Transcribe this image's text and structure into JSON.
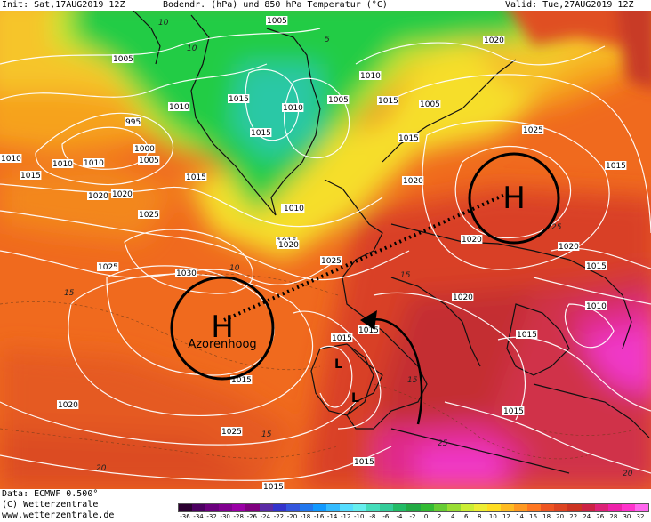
{
  "header": {
    "init": "Init: Sat,17AUG2019 12Z",
    "title": "Bodendr. (hPa) und 850 hPa Temperatur (°C)",
    "valid": "Valid: Tue,27AUG2019 12Z"
  },
  "footer": {
    "data_source": "Data: ECMWF  0.500°",
    "copyright": "(C) Wetterzentrale",
    "website": "www.wetterzentrale.de"
  },
  "annotations": {
    "high_symbol": "H",
    "low_symbol": "L",
    "azores_label": "Azorenhoog"
  },
  "colorbar": {
    "ticks": [
      "-36",
      "-34",
      "-32",
      "-30",
      "-28",
      "-26",
      "-24",
      "-22",
      "-20",
      "-18",
      "-16",
      "-14",
      "-12",
      "-10",
      "-8",
      "-6",
      "-4",
      "-2",
      "0",
      "2",
      "4",
      "6",
      "8",
      "10",
      "12",
      "14",
      "16",
      "18",
      "20",
      "22",
      "24",
      "26",
      "28",
      "30",
      "32"
    ],
    "colors": [
      "#2a0030",
      "#4b0060",
      "#6a007d",
      "#80008f",
      "#9a00a6",
      "#7f007f",
      "#5a2aa5",
      "#3333cc",
      "#3355dd",
      "#2277ee",
      "#1199ff",
      "#33bbff",
      "#55ddff",
      "#66eeee",
      "#44ddbb",
      "#33cc99",
      "#22bb66",
      "#22aa44",
      "#33bb33",
      "#66cc33",
      "#99dd33",
      "#ccee33",
      "#eeee33",
      "#ffdd22",
      "#ffbb22",
      "#ff9922",
      "#ff7722",
      "#ee5522",
      "#dd4422",
      "#cc3322",
      "#cc2244",
      "#dd2277",
      "#ee22aa",
      "#ff33cc",
      "#ff66ee"
    ]
  },
  "map_colors": {
    "warm_orange": "#f06a1e",
    "orange": "#f6a21c",
    "yellow": "#f6de2c",
    "lime": "#c8ea32",
    "green": "#22cc44",
    "teal": "#2cc8a6",
    "red": "#d93f26",
    "dark_red": "#c42d30",
    "magenta": "#e02a8a",
    "pink": "#f038c8"
  },
  "isobar_labels": [
    {
      "text": "1005"
    },
    {
      "text": "1005"
    },
    {
      "text": "1010"
    },
    {
      "text": "1015"
    },
    {
      "text": "1010"
    },
    {
      "text": "1015"
    },
    {
      "text": "1010"
    },
    {
      "text": "1005"
    },
    {
      "text": "1020"
    },
    {
      "text": "1005"
    },
    {
      "text": "1010"
    },
    {
      "text": "1015"
    },
    {
      "text": "1025"
    },
    {
      "text": "1010"
    },
    {
      "text": "1015"
    },
    {
      "text": "1020"
    },
    {
      "text": "1020"
    },
    {
      "text": "1015"
    },
    {
      "text": "1010"
    },
    {
      "text": "1015"
    },
    {
      "text": "1020"
    },
    {
      "text": "1025"
    },
    {
      "text": "995"
    },
    {
      "text": "1000"
    },
    {
      "text": "1005"
    },
    {
      "text": "1010"
    },
    {
      "text": "1015"
    },
    {
      "text": "1020"
    },
    {
      "text": "1025"
    },
    {
      "text": "1025"
    },
    {
      "text": "1030"
    },
    {
      "text": "1020"
    },
    {
      "text": "1025"
    },
    {
      "text": "1010"
    },
    {
      "text": "1020"
    },
    {
      "text": "1015"
    },
    {
      "text": "1010"
    },
    {
      "text": "1015"
    },
    {
      "text": "1015"
    },
    {
      "text": "1015"
    },
    {
      "text": "1015"
    },
    {
      "text": "1015"
    },
    {
      "text": "1020"
    },
    {
      "text": "1020"
    },
    {
      "text": "1015"
    },
    {
      "text": "1015"
    },
    {
      "text": "1015"
    }
  ],
  "temp_labels": [
    {
      "text": "15"
    },
    {
      "text": "20"
    },
    {
      "text": "15"
    },
    {
      "text": "10"
    },
    {
      "text": "15"
    },
    {
      "text": "10"
    },
    {
      "text": "20"
    },
    {
      "text": "25"
    },
    {
      "text": "25"
    },
    {
      "text": "15"
    },
    {
      "text": "5"
    },
    {
      "text": "10"
    }
  ]
}
